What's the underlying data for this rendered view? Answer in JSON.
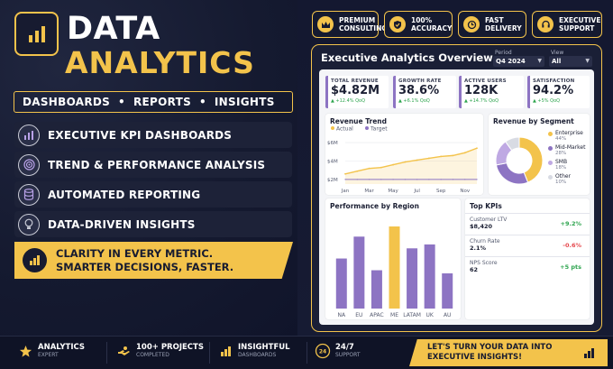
{
  "brand": {
    "title_line1": "DATA",
    "title_line2": "ANALYTICS",
    "tagline": "DASHBOARDS  •  REPORTS  •  INSIGHTS",
    "logo_icon": "bar-chart-icon"
  },
  "features": [
    {
      "label": "EXECUTIVE KPI DASHBOARDS",
      "icon": "chart-icon"
    },
    {
      "label": "TREND & PERFORMANCE ANALYSIS",
      "icon": "target-icon"
    },
    {
      "label": "AUTOMATED REPORTING",
      "icon": "database-icon"
    },
    {
      "label": "DATA-DRIVEN INSIGHTS",
      "icon": "lightbulb-icon"
    }
  ],
  "clarity": {
    "line1": "CLARITY IN EVERY METRIC.",
    "line2": "SMARTER DECISIONS, FASTER."
  },
  "badges": [
    {
      "line1": "PREMIUM",
      "line2": "CONSULTING",
      "icon": "crown-icon"
    },
    {
      "line1": "100%",
      "line2": "ACCURACY",
      "icon": "shield-check-icon"
    },
    {
      "line1": "FAST",
      "line2": "DELIVERY",
      "icon": "clock-icon"
    },
    {
      "line1": "EXECUTIVE",
      "line2": "SUPPORT",
      "icon": "headset-icon"
    }
  ],
  "dashboard": {
    "title": "Executive Analytics Overview",
    "period_label": "Period",
    "period_value": "Q4 2024",
    "view_label": "View",
    "view_value": "All"
  },
  "kpis": [
    {
      "label": "TOTAL REVENUE",
      "value": "$4.82M",
      "delta": "▲ +12.4% QoQ"
    },
    {
      "label": "GROWTH RATE",
      "value": "38.6%",
      "delta": "▲ +6.1% QoQ"
    },
    {
      "label": "ACTIVE USERS",
      "value": "128K",
      "delta": "▲ +14.7% QoQ"
    },
    {
      "label": "SATISFACTION",
      "value": "94.2%",
      "delta": "▲ +5% QoQ"
    }
  ],
  "colors": {
    "accent": "#f3c34b",
    "purple": "#8d74c3",
    "navy": "#151a30",
    "positive": "#2da44e",
    "negative": "#e5484d"
  },
  "chart_data": [
    {
      "type": "line",
      "title": "Revenue Trend",
      "x": [
        "Jan",
        "Feb",
        "Mar",
        "Apr",
        "May",
        "Jun",
        "Jul",
        "Aug",
        "Sep",
        "Oct",
        "Nov",
        "Dec"
      ],
      "x_tick_labels": [
        "Jan",
        "Mar",
        "May",
        "Jul",
        "Sep",
        "Nov"
      ],
      "series": [
        {
          "name": "Actual",
          "values": [
            2.6,
            2.9,
            3.2,
            3.3,
            3.6,
            3.9,
            4.1,
            4.3,
            4.5,
            4.6,
            4.9,
            5.4
          ],
          "color": "#f3c34b"
        },
        {
          "name": "Target",
          "values": [
            2.0,
            2.0,
            2.0,
            2.0,
            2.0,
            2.0,
            2.0,
            2.0,
            2.0,
            2.0,
            2.0,
            2.0
          ],
          "color": "#8d74c3"
        }
      ],
      "y_tick_labels": [
        "$2M",
        "$4M",
        "$6M"
      ],
      "ylim": [
        1.5,
        6.5
      ],
      "legend": "top-left",
      "grid": true
    },
    {
      "type": "pie",
      "title": "Revenue by Segment",
      "categories": [
        "Enterprise",
        "Mid-Market",
        "SMB",
        "Other"
      ],
      "values": [
        44,
        28,
        18,
        10
      ],
      "labels": [
        "44%",
        "28%",
        "18%",
        "10%"
      ],
      "colors": [
        "#f3c34b",
        "#8d74c3",
        "#bfa9e3",
        "#d8dbe3"
      ]
    },
    {
      "type": "bar",
      "title": "Performance by Region",
      "categories": [
        "NA",
        "EU",
        "APAC",
        "ME",
        "LATAM",
        "UK",
        "AU"
      ],
      "values": [
        64,
        92,
        49,
        105,
        77,
        82,
        45
      ],
      "colors": [
        "#8d74c3",
        "#8d74c3",
        "#8d74c3",
        "#f3c34b",
        "#8d74c3",
        "#8d74c3",
        "#8d74c3"
      ],
      "ylim": [
        0,
        120
      ]
    }
  ],
  "top_kpis": {
    "title": "Top KPIs",
    "items": [
      {
        "name": "Customer LTV",
        "value": "$8,420",
        "delta": "+9.2%",
        "positive": true
      },
      {
        "name": "Churn Rate",
        "value": "2.1%",
        "delta": "-0.6%",
        "positive": false
      },
      {
        "name": "NPS Score",
        "value": "62",
        "delta": "+5 pts",
        "positive": true
      }
    ]
  },
  "footer": {
    "items": [
      {
        "t1": "ANALYTICS",
        "t2": "EXPERT",
        "icon": "star-icon"
      },
      {
        "t1": "100+ PROJECTS",
        "t2": "COMPLETED",
        "icon": "hand-icon"
      },
      {
        "t1": "INSIGHTFUL",
        "t2": "DASHBOARDS",
        "icon": "bar-chart-icon"
      },
      {
        "t1": "24/7",
        "t2": "SUPPORT",
        "icon": "24h-icon"
      }
    ],
    "cta_line1": "LET'S TURN YOUR DATA INTO",
    "cta_line2": "EXECUTIVE INSIGHTS!"
  }
}
